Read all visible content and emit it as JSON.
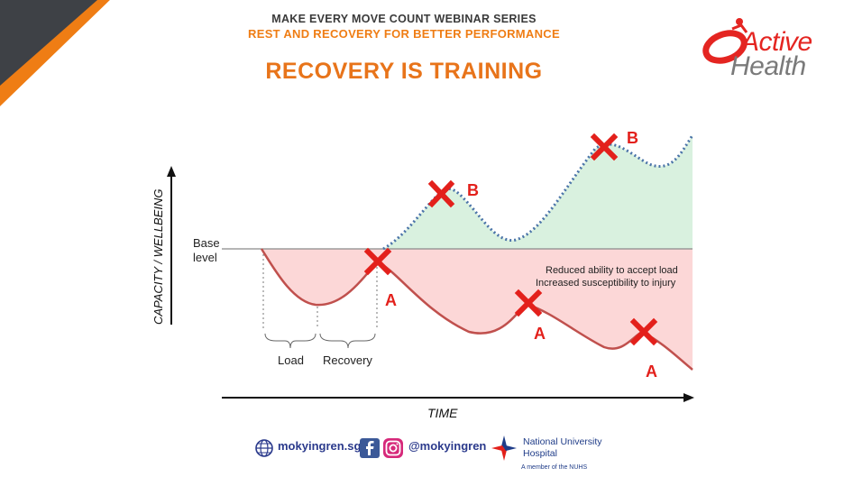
{
  "header": {
    "series": "MAKE EVERY MOVE COUNT WEBINAR SERIES",
    "subtitle": "REST AND RECOVERY FOR BETTER PERFORMANCE",
    "title": "RECOVERY IS TRAINING"
  },
  "logo": {
    "line1": "Active",
    "line2": "Health",
    "icon": "runner-swoosh-icon"
  },
  "diagram": {
    "y_axis_label": "CAPACITY / WELLBEING",
    "x_axis_label": "TIME",
    "base_label_1": "Base",
    "base_label_2": "level",
    "load_label": "Load",
    "recovery_label": "Recovery",
    "note_1": "Reduced ability to accept load",
    "note_2": "Increased susceptibility to injury",
    "markers": {
      "b1": "B",
      "b2": "B",
      "a1": "A",
      "a2": "A",
      "a3": "A"
    },
    "colors": {
      "red_area": "#fcd7d7",
      "green_area": "#d9f1df",
      "red_line": "#c0504d",
      "blue_dots": "#4a73a8",
      "cross": "#e3201b",
      "marker_text": "#e3201b"
    }
  },
  "footer": {
    "website": "mokyingren.sg",
    "handle": "@mokyingren",
    "hospital_line1": "National University",
    "hospital_line2": "Hospital",
    "hospital_line3": "A member of the NUHS",
    "icons": [
      "globe-icon",
      "facebook-icon",
      "instagram-icon",
      "hospital-logo-icon"
    ]
  }
}
